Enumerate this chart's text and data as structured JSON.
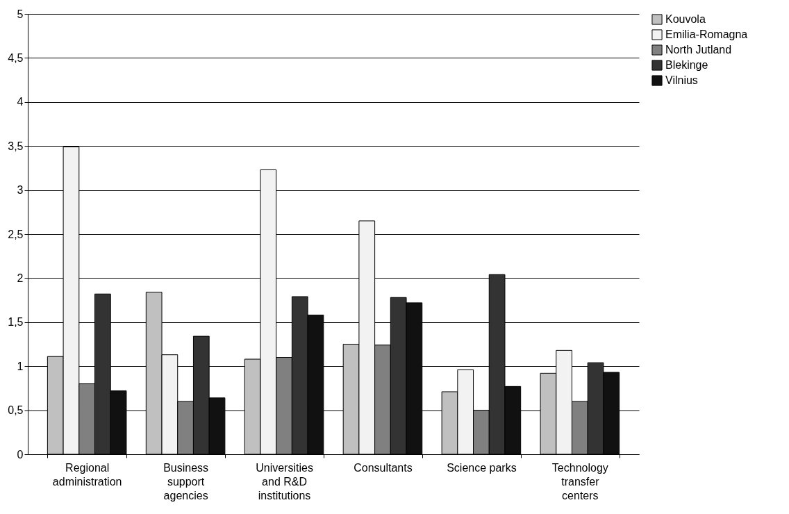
{
  "chart_data": {
    "type": "bar",
    "categories": [
      "Regional administration",
      "Business support agencies",
      "Universities and R&D institutions",
      "Consultants",
      "Science parks",
      "Technology transfer centers"
    ],
    "series": [
      {
        "name": "Kouvola",
        "color": "#c0c0c0",
        "values": [
          1.11,
          1.84,
          1.08,
          1.25,
          0.71,
          0.92
        ]
      },
      {
        "name": "Emilia-Romagna",
        "color": "#f2f2f2",
        "values": [
          3.49,
          1.13,
          3.23,
          2.65,
          0.96,
          1.18
        ]
      },
      {
        "name": "North Jutland",
        "color": "#808080",
        "values": [
          0.8,
          0.6,
          1.1,
          1.24,
          0.5,
          0.6
        ]
      },
      {
        "name": "Blekinge",
        "color": "#333333",
        "values": [
          1.82,
          1.34,
          1.79,
          1.78,
          2.04,
          1.04
        ]
      },
      {
        "name": "Vilnius",
        "color": "#111111",
        "values": [
          0.72,
          0.64,
          1.58,
          1.72,
          0.77,
          0.93
        ]
      }
    ],
    "ylim": [
      0,
      5
    ],
    "yticks": [
      0,
      {
        "value": 0.5,
        "label": "0,5"
      },
      1,
      {
        "value": 1.5,
        "label": "1,5"
      },
      2,
      {
        "value": 2.5,
        "label": "2,5"
      },
      3,
      {
        "value": 3.5,
        "label": "3,5"
      },
      4,
      {
        "value": 4.5,
        "label": "4,5"
      },
      5
    ],
    "grid": "y",
    "legend": "right"
  }
}
